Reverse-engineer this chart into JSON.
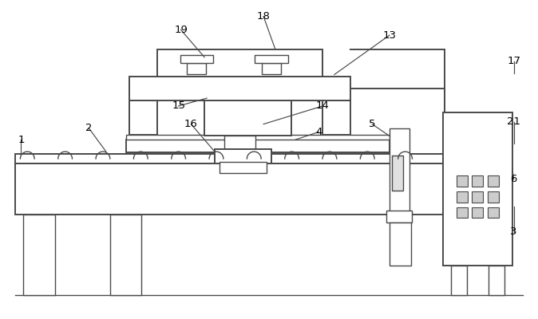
{
  "background_color": "#ffffff",
  "line_color": "#4a4a4a",
  "lw_main": 1.4,
  "lw_thin": 1.0
}
